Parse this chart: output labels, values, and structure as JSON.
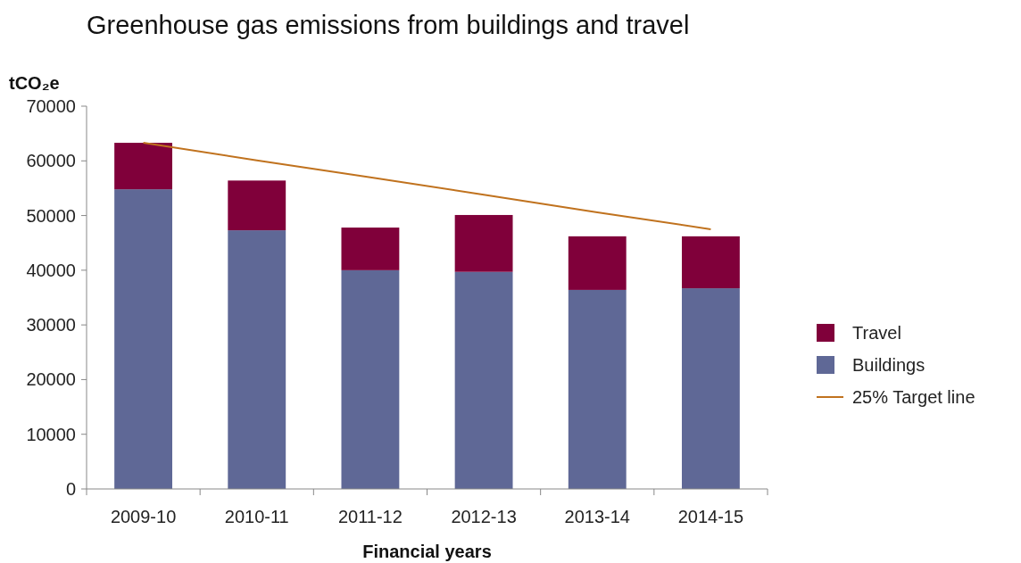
{
  "chart_data": {
    "type": "bar",
    "title": "Greenhouse gas emissions from buildings and travel",
    "ylabel": "tCO₂e",
    "xlabel": "Financial years",
    "stacked": true,
    "legend": "right",
    "grid": false,
    "categories": [
      "2009-10",
      "2010-11",
      "2011-12",
      "2012-13",
      "2013-14",
      "2014-15"
    ],
    "series": [
      {
        "name": "Buildings",
        "color": "#5f6896",
        "values": [
          54800,
          47300,
          40000,
          39700,
          36400,
          36700
        ]
      },
      {
        "name": "Travel",
        "color": "#80003a",
        "values": [
          8500,
          9100,
          7800,
          10400,
          9800,
          9500
        ]
      },
      {
        "name": "25% Target line",
        "type": "line",
        "color": "#c0721e",
        "values": [
          63300,
          60100,
          57000,
          53800,
          50600,
          47500
        ]
      }
    ],
    "ylim": [
      0,
      70000
    ],
    "yticks": [
      0,
      10000,
      20000,
      30000,
      40000,
      50000,
      60000,
      70000
    ]
  }
}
